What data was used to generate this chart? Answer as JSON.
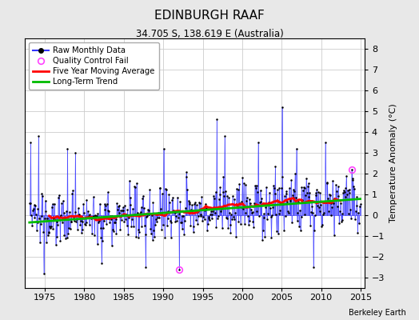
{
  "title": "EDINBURGH RAAF",
  "subtitle": "34.705 S, 138.619 E (Australia)",
  "ylabel": "Temperature Anomaly (°C)",
  "credit": "Berkeley Earth",
  "xlim": [
    1972.5,
    2015.5
  ],
  "ylim": [
    -3.5,
    8.5
  ],
  "yticks": [
    -3,
    -2,
    -1,
    0,
    1,
    2,
    3,
    4,
    5,
    6,
    7,
    8
  ],
  "xticks": [
    1975,
    1980,
    1985,
    1990,
    1995,
    2000,
    2005,
    2010,
    2015
  ],
  "raw_color": "#3333FF",
  "moving_avg_color": "#FF0000",
  "trend_color": "#00BB00",
  "qc_color": "#FF44FF",
  "background_color": "#e8e8e8",
  "plot_bg": "#ffffff",
  "seed": 137
}
